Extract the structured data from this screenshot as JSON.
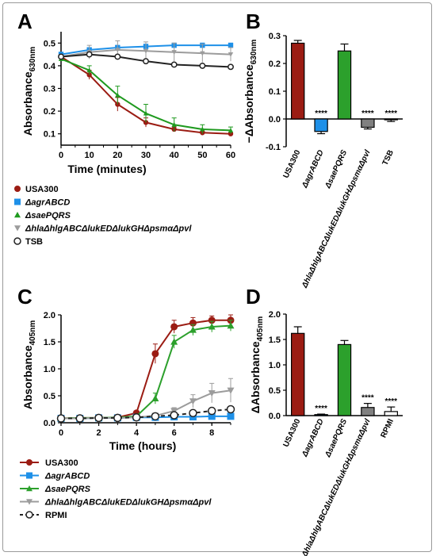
{
  "chart_data": [
    {
      "panel": "A",
      "type": "line",
      "xlabel": "Time (minutes)",
      "ylabel": "Absorbance",
      "ylabel_sub": "630nm",
      "xlim": [
        0,
        60
      ],
      "ylim": [
        0.05,
        0.55
      ],
      "xticks": [
        "0",
        "10",
        "20",
        "30",
        "40",
        "50",
        "60"
      ],
      "yticks": [
        "0.1",
        "0.2",
        "0.3",
        "0.4",
        "0.5"
      ],
      "x": [
        0,
        10,
        20,
        30,
        40,
        50,
        60
      ],
      "series": [
        {
          "name": "USA300",
          "color": "#9b1c13",
          "marker": "circle",
          "values": [
            0.44,
            0.36,
            0.23,
            0.15,
            0.12,
            0.105,
            0.1
          ],
          "err": [
            0.01,
            0.02,
            0.03,
            0.02,
            0.01,
            0.005,
            0.005
          ]
        },
        {
          "name": "ΔagrABCD",
          "color": "#1e90e8",
          "marker": "square",
          "values": [
            0.45,
            0.47,
            0.48,
            0.485,
            0.49,
            0.49,
            0.49
          ],
          "err": [
            0.01,
            0.01,
            0.01,
            0.01,
            0.01,
            0.01,
            0.01
          ]
        },
        {
          "name": "ΔsaePQRS",
          "color": "#1f9a1f",
          "marker": "triangle",
          "values": [
            0.43,
            0.38,
            0.27,
            0.19,
            0.14,
            0.12,
            0.115
          ],
          "err": [
            0.01,
            0.02,
            0.04,
            0.04,
            0.03,
            0.02,
            0.015
          ]
        },
        {
          "name": "ΔhlaΔhlgABCΔlukEDΔlukGHΔpsmαΔpvl",
          "color": "#9c9c9c",
          "marker": "triangle-down",
          "values": [
            0.44,
            0.46,
            0.47,
            0.465,
            0.46,
            0.455,
            0.45
          ],
          "err": [
            0.01,
            0.03,
            0.04,
            0.04,
            0.04,
            0.04,
            0.03
          ]
        },
        {
          "name": "TSB",
          "color": "#222222",
          "marker": "open-circle",
          "values": [
            0.44,
            0.45,
            0.44,
            0.42,
            0.405,
            0.4,
            0.395
          ],
          "err": [
            0.0,
            0.0,
            0.0,
            0.0,
            0.0,
            0.0,
            0.0
          ]
        }
      ]
    },
    {
      "panel": "B",
      "type": "bar",
      "ylabel": "−ΔAbsorbance",
      "ylabel_sub": "630nm",
      "ylim": [
        -0.1,
        0.3
      ],
      "yticks": [
        "-0.1",
        "0.0",
        "0.1",
        "0.2",
        "0.3"
      ],
      "categories": [
        "USA300",
        "ΔagrABCD",
        "ΔsaePQRS",
        "ΔhlaΔhlgABCΔlukEDΔlukGHΔpsmαΔpvl",
        "TSB"
      ],
      "values": [
        0.273,
        -0.045,
        0.245,
        -0.03,
        -0.003
      ],
      "errors": [
        0.01,
        0.008,
        0.025,
        0.006,
        0.006
      ],
      "colors": [
        "#9b1c13",
        "#1e90e8",
        "#2ca02c",
        "#808080",
        "#ffffff"
      ],
      "annotations": [
        "",
        "****",
        "",
        "****",
        "****"
      ]
    },
    {
      "panel": "C",
      "type": "line",
      "xlabel": "Time (hours)",
      "ylabel": "Absorbance",
      "ylabel_sub": "405nm",
      "xlim": [
        0,
        9
      ],
      "ylim": [
        0,
        2.0
      ],
      "xticks": [
        "0",
        "2",
        "4",
        "6",
        "8"
      ],
      "yticks": [
        "0.0",
        "0.5",
        "1.0",
        "1.5",
        "2.0"
      ],
      "x": [
        0,
        1,
        2,
        3,
        4,
        5,
        6,
        7,
        8,
        9
      ],
      "series": [
        {
          "name": "USA300",
          "color": "#9b1c13",
          "marker": "circle",
          "values": [
            0.08,
            0.09,
            0.09,
            0.1,
            0.18,
            1.28,
            1.78,
            1.85,
            1.9,
            1.9
          ],
          "err": [
            0.02,
            0.02,
            0.02,
            0.02,
            0.04,
            0.18,
            0.12,
            0.1,
            0.08,
            0.1
          ]
        },
        {
          "name": "ΔagrABCD",
          "color": "#1e90e8",
          "marker": "square",
          "values": [
            0.08,
            0.08,
            0.09,
            0.09,
            0.1,
            0.1,
            0.11,
            0.11,
            0.12,
            0.12
          ],
          "err": [
            0.01,
            0.01,
            0.01,
            0.01,
            0.01,
            0.01,
            0.01,
            0.01,
            0.01,
            0.01
          ]
        },
        {
          "name": "ΔsaePQRS",
          "color": "#2ca02c",
          "marker": "triangle",
          "values": [
            0.08,
            0.09,
            0.09,
            0.1,
            0.12,
            0.45,
            1.5,
            1.72,
            1.78,
            1.8
          ],
          "err": [
            0.02,
            0.02,
            0.02,
            0.02,
            0.03,
            0.1,
            0.12,
            0.1,
            0.1,
            0.1
          ]
        },
        {
          "name": "ΔhlaΔhlgABCΔlukEDΔlukGHΔpsmαΔpvl",
          "color": "#9c9c9c",
          "marker": "triangle-down",
          "values": [
            0.08,
            0.08,
            0.09,
            0.09,
            0.1,
            0.13,
            0.22,
            0.4,
            0.55,
            0.6
          ],
          "err": [
            0.01,
            0.01,
            0.01,
            0.01,
            0.02,
            0.04,
            0.06,
            0.12,
            0.18,
            0.22
          ]
        },
        {
          "name": "RPMI",
          "color": "#222222",
          "marker": "open-circle",
          "dashed": true,
          "values": [
            0.08,
            0.08,
            0.09,
            0.09,
            0.1,
            0.12,
            0.14,
            0.18,
            0.22,
            0.25
          ],
          "err": [
            0.01,
            0.01,
            0.01,
            0.01,
            0.01,
            0.01,
            0.02,
            0.03,
            0.04,
            0.05
          ]
        }
      ]
    },
    {
      "panel": "D",
      "type": "bar",
      "ylabel": "ΔAbsorbance",
      "ylabel_sub": "405nm",
      "ylim": [
        0,
        2.0
      ],
      "yticks": [
        "0.0",
        "0.5",
        "1.0",
        "1.5",
        "2.0"
      ],
      "categories": [
        "USA300",
        "ΔagrABCD",
        "ΔsaePQRS",
        "ΔhlaΔhlgABCΔlukEDΔlukGHΔpsmαΔpvl",
        "RPMI"
      ],
      "values": [
        1.62,
        0.02,
        1.4,
        0.16,
        0.08
      ],
      "errors": [
        0.13,
        0.01,
        0.08,
        0.08,
        0.09
      ],
      "colors": [
        "#9b1c13",
        "#1e90e8",
        "#2ca02c",
        "#808080",
        "#ffffff"
      ],
      "annotations": [
        "",
        "****",
        "",
        "****",
        "****"
      ]
    }
  ]
}
